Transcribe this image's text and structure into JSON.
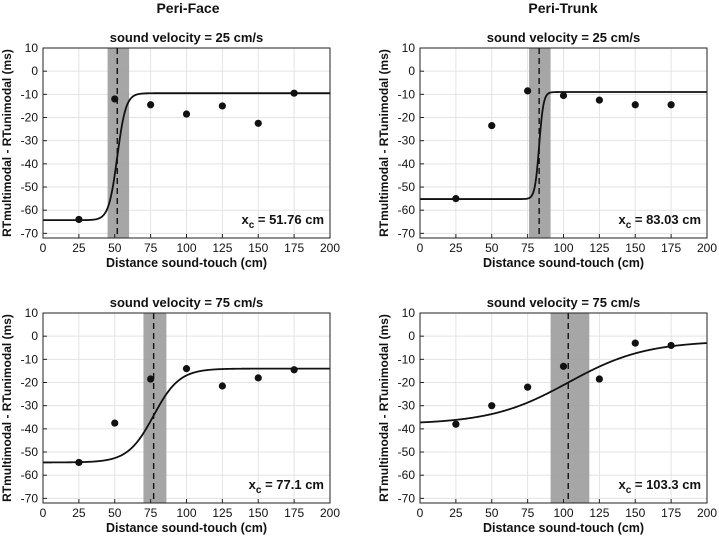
{
  "figure": {
    "column_titles": [
      "Peri-Face",
      "Peri-Trunk"
    ]
  },
  "chart_data": [
    {
      "type": "scatter",
      "column": "Peri-Face",
      "title": "sound velocity = 25 cm/s",
      "xlabel": "Distance sound-touch (cm)",
      "ylabel": "RTmultimodal - RTunimodal (ms)",
      "xlim": [
        0,
        200
      ],
      "ylim": [
        -72,
        10
      ],
      "xticks": [
        0,
        25,
        50,
        75,
        100,
        125,
        150,
        175,
        200
      ],
      "yticks": [
        10,
        0,
        -10,
        -20,
        -30,
        -40,
        -50,
        -60,
        -70
      ],
      "grid": true,
      "points": {
        "x": [
          25,
          50,
          75,
          100,
          125,
          150,
          175
        ],
        "y": [
          -64,
          -12,
          -14.5,
          -18.5,
          -15,
          -22.5,
          -9.5
        ]
      },
      "fit": {
        "type": "sigmoid",
        "ymin": -64.3,
        "ymax": -9.5,
        "xc": 51.76,
        "slope": 3
      },
      "xc_band": [
        45,
        60
      ],
      "annotation": {
        "prefix": "x",
        "subscript": "c",
        "text": " = 51.76 cm"
      }
    },
    {
      "type": "scatter",
      "column": "Peri-Trunk",
      "title": "sound velocity = 25 cm/s",
      "xlabel": "Distance sound-touch (cm)",
      "ylabel": "RTmultimodal - RTunimodal (ms)",
      "xlim": [
        0,
        200
      ],
      "ylim": [
        -72,
        10
      ],
      "xticks": [
        0,
        25,
        50,
        75,
        100,
        125,
        150,
        175,
        200
      ],
      "yticks": [
        10,
        0,
        -10,
        -20,
        -30,
        -40,
        -50,
        -60,
        -70
      ],
      "grid": true,
      "points": {
        "x": [
          25,
          50,
          75,
          100,
          125,
          150,
          175
        ],
        "y": [
          -55,
          -23.5,
          -8.5,
          -10.5,
          -12.5,
          -14.5,
          -14.5
        ]
      },
      "fit": {
        "type": "sigmoid",
        "ymin": -55.2,
        "ymax": -9,
        "xc": 83.03,
        "slope": 1.5
      },
      "xc_band": [
        76,
        91
      ],
      "annotation": {
        "prefix": "x",
        "subscript": "c",
        "text": " = 83.03 cm"
      }
    },
    {
      "type": "scatter",
      "column": "Peri-Face",
      "title": "sound velocity = 75 cm/s",
      "xlabel": "Distance sound-touch (cm)",
      "ylabel": "RTmultimodal - RTunimodal (ms)",
      "xlim": [
        0,
        200
      ],
      "ylim": [
        -72,
        10
      ],
      "xticks": [
        0,
        25,
        50,
        75,
        100,
        125,
        150,
        175,
        200
      ],
      "yticks": [
        10,
        0,
        -10,
        -20,
        -30,
        -40,
        -50,
        -60,
        -70
      ],
      "grid": true,
      "points": {
        "x": [
          25,
          50,
          75,
          100,
          125,
          150,
          175
        ],
        "y": [
          -54.5,
          -37.5,
          -18.5,
          -14,
          -21.5,
          -18,
          -14.5
        ]
      },
      "fit": {
        "type": "sigmoid",
        "ymin": -54.5,
        "ymax": -14,
        "xc": 77.1,
        "slope": 9
      },
      "xc_band": [
        70,
        86
      ],
      "annotation": {
        "prefix": "x",
        "subscript": "c",
        "text": " = 77.1 cm"
      }
    },
    {
      "type": "scatter",
      "column": "Peri-Trunk",
      "title": "sound velocity = 75 cm/s",
      "xlabel": "Distance sound-touch (cm)",
      "ylabel": "RTmultimodal - RTunimodal (ms)",
      "xlim": [
        0,
        200
      ],
      "ylim": [
        -72,
        10
      ],
      "xticks": [
        0,
        25,
        50,
        75,
        100,
        125,
        150,
        175,
        200
      ],
      "yticks": [
        10,
        0,
        -10,
        -20,
        -30,
        -40,
        -50,
        -60,
        -70
      ],
      "grid": true,
      "points": {
        "x": [
          25,
          50,
          75,
          100,
          125,
          150,
          175
        ],
        "y": [
          -38,
          -30,
          -22,
          -13,
          -18.5,
          -3,
          -4
        ]
      },
      "fit": {
        "type": "sigmoid",
        "ymin": -38,
        "ymax": -2,
        "xc": 103.3,
        "slope": 27
      },
      "xc_band": [
        91,
        118
      ],
      "annotation": {
        "prefix": "x",
        "subscript": "c",
        "text": " = 103.3 cm"
      }
    }
  ]
}
